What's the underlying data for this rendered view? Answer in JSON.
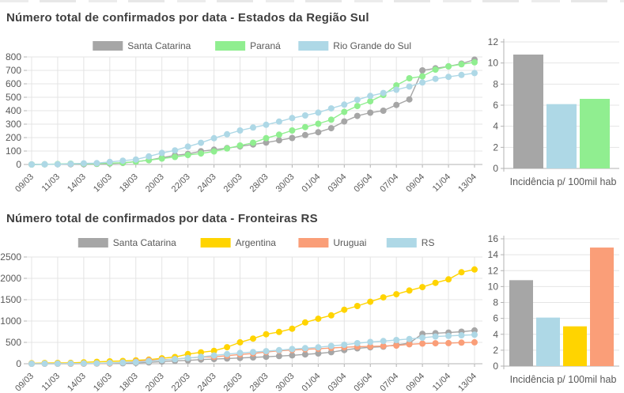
{
  "colors": {
    "gray": "#a6a6a6",
    "green": "#90ee90",
    "blue": "#aed8e6",
    "gold": "#ffd400",
    "salmon": "#fa9e78",
    "grid": "#e4e4e4",
    "axis": "#b3b3b3",
    "tick_text": "#595959",
    "title_text": "#3f3f3f"
  },
  "sections": [
    {
      "title": "Número total de confirmados por data - Estados da Região Sul"
    },
    {
      "title": "Número total de confirmados por data - Fronteiras RS"
    }
  ],
  "chart_data": [
    {
      "id": "regiao-sul-line",
      "type": "line",
      "title": "Número total de confirmados por data - Estados da Região Sul",
      "x": [
        "09/03",
        "10/03",
        "11/03",
        "12/03",
        "14/03",
        "15/03",
        "16/03",
        "17/03",
        "18/03",
        "19/03",
        "20/03",
        "21/03",
        "22/03",
        "23/03",
        "24/03",
        "25/03",
        "26/03",
        "27/03",
        "28/03",
        "29/03",
        "30/03",
        "31/03",
        "01/04",
        "02/04",
        "03/04",
        "04/04",
        "05/04",
        "06/04",
        "07/04",
        "08/04",
        "09/04",
        "10/04",
        "11/04",
        "12/04",
        "13/04"
      ],
      "x_tick_labels": [
        "09/03",
        "11/03",
        "14/03",
        "16/03",
        "18/03",
        "20/03",
        "22/03",
        "24/03",
        "26/03",
        "28/03",
        "30/03",
        "01/04",
        "03/04",
        "05/04",
        "07/04",
        "09/04",
        "11/04",
        "13/04"
      ],
      "series": [
        {
          "name": "Santa Catarina",
          "color": "#a6a6a6",
          "values": [
            0,
            1,
            2,
            2,
            2,
            4,
            7,
            11,
            21,
            32,
            50,
            68,
            78,
            98,
            110,
            122,
            135,
            149,
            163,
            180,
            197,
            219,
            240,
            270,
            320,
            361,
            385,
            400,
            443,
            484,
            700,
            715,
            730,
            750,
            780
          ]
        },
        {
          "name": "Paraná",
          "color": "#90ee90",
          "values": [
            0,
            1,
            3,
            6,
            6,
            6,
            10,
            13,
            21,
            32,
            44,
            56,
            70,
            82,
            97,
            119,
            141,
            162,
            196,
            222,
            253,
            278,
            303,
            333,
            391,
            435,
            470,
            517,
            588,
            641,
            656,
            706,
            730,
            745,
            760
          ]
        },
        {
          "name": "Rio Grande do Sul",
          "color": "#aed8e6",
          "values": [
            0,
            1,
            2,
            5,
            8,
            10,
            19,
            28,
            37,
            60,
            86,
            105,
            133,
            161,
            195,
            225,
            253,
            275,
            295,
            319,
            345,
            365,
            386,
            417,
            445,
            481,
            510,
            532,
            556,
            580,
            610,
            637,
            652,
            666,
            680
          ]
        }
      ],
      "ylim": [
        0,
        800
      ],
      "ytick_step": 100,
      "grid": true,
      "legend_position": "top"
    },
    {
      "id": "regiao-sul-incidencia-bar",
      "type": "bar",
      "xlabel": "Incidência p/ 100mil hab",
      "categories": [
        "Santa Catarina",
        "Rio Grande do Sul",
        "Paraná"
      ],
      "values": [
        10.8,
        6.1,
        6.6
      ],
      "bar_colors": [
        "#a6a6a6",
        "#aed8e6",
        "#90ee90"
      ],
      "ylim": [
        0,
        12
      ],
      "ytick_step": 2,
      "grid": true
    },
    {
      "id": "fronteiras-rs-line",
      "type": "line",
      "title": "Número total de confirmados por data - Fronteiras RS",
      "x": [
        "09/03",
        "10/03",
        "11/03",
        "12/03",
        "14/03",
        "15/03",
        "16/03",
        "17/03",
        "18/03",
        "19/03",
        "20/03",
        "21/03",
        "22/03",
        "23/03",
        "24/03",
        "25/03",
        "26/03",
        "27/03",
        "28/03",
        "29/03",
        "30/03",
        "31/03",
        "01/04",
        "02/04",
        "03/04",
        "04/04",
        "05/04",
        "06/04",
        "07/04",
        "08/04",
        "09/04",
        "10/04",
        "11/04",
        "12/04",
        "13/04"
      ],
      "x_tick_labels": [
        "09/03",
        "11/03",
        "14/03",
        "16/03",
        "18/03",
        "20/03",
        "22/03",
        "24/03",
        "26/03",
        "28/03",
        "30/03",
        "01/04",
        "03/04",
        "05/04",
        "07/04",
        "09/04",
        "11/04",
        "13/04"
      ],
      "series": [
        {
          "name": "Santa Catarina",
          "color": "#a6a6a6",
          "values": [
            0,
            1,
            2,
            2,
            2,
            4,
            7,
            11,
            21,
            32,
            50,
            68,
            78,
            98,
            110,
            122,
            135,
            149,
            163,
            180,
            197,
            219,
            240,
            270,
            320,
            361,
            385,
            400,
            443,
            484,
            700,
            715,
            730,
            750,
            780
          ]
        },
        {
          "name": "Argentina",
          "color": "#ffd400",
          "values": [
            12,
            17,
            19,
            21,
            34,
            45,
            56,
            65,
            79,
            97,
            128,
            158,
            225,
            266,
            301,
            387,
            502,
            589,
            690,
            745,
            820,
            966,
            1054,
            1133,
            1265,
            1352,
            1451,
            1554,
            1628,
            1715,
            1795,
            1894,
            1975,
            2142,
            2208
          ]
        },
        {
          "name": "Uruguai",
          "color": "#fa9e78",
          "values": [
            0,
            0,
            0,
            0,
            4,
            6,
            8,
            29,
            50,
            79,
            94,
            110,
            135,
            158,
            162,
            189,
            217,
            238,
            274,
            304,
            320,
            338,
            350,
            369,
            386,
            400,
            406,
            415,
            424,
            456,
            473,
            480,
            483,
            494,
            501
          ]
        },
        {
          "name": "RS",
          "color": "#aed8e6",
          "values": [
            0,
            1,
            2,
            5,
            8,
            10,
            19,
            28,
            37,
            60,
            86,
            105,
            133,
            161,
            195,
            225,
            253,
            275,
            295,
            319,
            345,
            365,
            386,
            417,
            445,
            481,
            510,
            532,
            556,
            580,
            610,
            637,
            652,
            666,
            680
          ]
        }
      ],
      "ylim": [
        0,
        2500
      ],
      "ytick_step": 500,
      "grid": true,
      "legend_position": "top"
    },
    {
      "id": "fronteiras-rs-incidencia-bar",
      "type": "bar",
      "xlabel": "Incidência p/ 100mil hab",
      "categories": [
        "Santa Catarina",
        "RS",
        "Argentina",
        "Uruguai"
      ],
      "values": [
        10.8,
        6.1,
        5.0,
        14.9
      ],
      "bar_colors": [
        "#a6a6a6",
        "#aed8e6",
        "#ffd400",
        "#fa9e78"
      ],
      "ylim": [
        0,
        16
      ],
      "ytick_step": 2,
      "grid": true
    }
  ]
}
